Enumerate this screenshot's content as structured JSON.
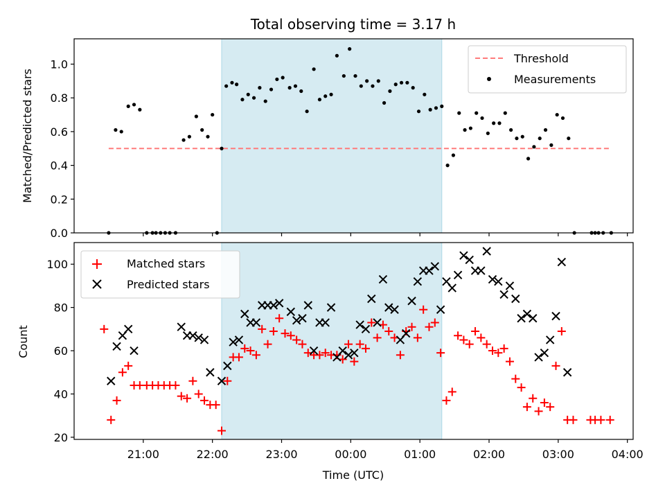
{
  "chart_data": [
    {
      "type": "scatter",
      "title": "Total observing time = 3.17 h",
      "xlabel": "",
      "ylabel": "Matched/Predicted stars",
      "ylim": [
        0,
        1.15
      ],
      "yticks": [
        "0.0",
        "0.2",
        "0.4",
        "0.6",
        "0.8",
        "1.0"
      ],
      "legend_position": "top-right",
      "grid": false,
      "highlight_span": {
        "start": "22:08",
        "end": "01:19",
        "color": "#add8e6"
      },
      "threshold": {
        "name": "Threshold",
        "value": 0.5,
        "x_start": "20:30",
        "x_end": "03:45",
        "color": "#ff7b7b"
      },
      "series": [
        {
          "name": "Measurements",
          "color": "#000000",
          "marker": "dot",
          "points": [
            [
              "20:30",
              0.0
            ],
            [
              "20:36",
              0.61
            ],
            [
              "20:41",
              0.6
            ],
            [
              "20:47",
              0.75
            ],
            [
              "20:52",
              0.76
            ],
            [
              "20:57",
              0.73
            ],
            [
              "21:03",
              0.0
            ],
            [
              "21:08",
              0.0
            ],
            [
              "21:11",
              0.0
            ],
            [
              "21:15",
              0.0
            ],
            [
              "21:19",
              0.0
            ],
            [
              "21:23",
              0.0
            ],
            [
              "21:28",
              0.0
            ],
            [
              "21:35",
              0.55
            ],
            [
              "21:40",
              0.57
            ],
            [
              "21:46",
              0.69
            ],
            [
              "21:51",
              0.61
            ],
            [
              "21:56",
              0.57
            ],
            [
              "22:00",
              0.7
            ],
            [
              "22:04",
              0.0
            ],
            [
              "22:08",
              0.5
            ],
            [
              "22:12",
              0.87
            ],
            [
              "22:17",
              0.89
            ],
            [
              "22:21",
              0.88
            ],
            [
              "22:26",
              0.79
            ],
            [
              "22:31",
              0.82
            ],
            [
              "22:36",
              0.8
            ],
            [
              "22:41",
              0.86
            ],
            [
              "22:46",
              0.78
            ],
            [
              "22:51",
              0.85
            ],
            [
              "22:56",
              0.91
            ],
            [
              "23:01",
              0.92
            ],
            [
              "23:07",
              0.86
            ],
            [
              "23:12",
              0.87
            ],
            [
              "23:17",
              0.84
            ],
            [
              "23:22",
              0.72
            ],
            [
              "23:28",
              0.97
            ],
            [
              "23:33",
              0.79
            ],
            [
              "23:38",
              0.81
            ],
            [
              "23:43",
              0.82
            ],
            [
              "23:48",
              1.05
            ],
            [
              "23:54",
              0.93
            ],
            [
              "23:59",
              1.09
            ],
            [
              "00:04",
              0.93
            ],
            [
              "00:09",
              0.87
            ],
            [
              "00:14",
              0.9
            ],
            [
              "00:19",
              0.87
            ],
            [
              "00:24",
              0.9
            ],
            [
              "00:29",
              0.77
            ],
            [
              "00:34",
              0.84
            ],
            [
              "00:39",
              0.88
            ],
            [
              "00:44",
              0.89
            ],
            [
              "00:49",
              0.89
            ],
            [
              "00:54",
              0.86
            ],
            [
              "00:59",
              0.72
            ],
            [
              "01:04",
              0.82
            ],
            [
              "01:09",
              0.73
            ],
            [
              "01:14",
              0.74
            ],
            [
              "01:19",
              0.75
            ],
            [
              "01:24",
              0.4
            ],
            [
              "01:29",
              0.46
            ],
            [
              "01:34",
              0.71
            ],
            [
              "01:39",
              0.61
            ],
            [
              "01:44",
              0.62
            ],
            [
              "01:49",
              0.71
            ],
            [
              "01:54",
              0.68
            ],
            [
              "01:59",
              0.59
            ],
            [
              "02:04",
              0.65
            ],
            [
              "02:09",
              0.65
            ],
            [
              "02:14",
              0.71
            ],
            [
              "02:19",
              0.61
            ],
            [
              "02:24",
              0.56
            ],
            [
              "02:29",
              0.57
            ],
            [
              "02:34",
              0.44
            ],
            [
              "02:39",
              0.51
            ],
            [
              "02:44",
              0.56
            ],
            [
              "02:49",
              0.61
            ],
            [
              "02:54",
              0.52
            ],
            [
              "02:59",
              0.7
            ],
            [
              "03:04",
              0.68
            ],
            [
              "03:09",
              0.56
            ],
            [
              "03:14",
              0.0
            ],
            [
              "03:29",
              0.0
            ],
            [
              "03:32",
              0.0
            ],
            [
              "03:35",
              0.0
            ],
            [
              "03:39",
              0.0
            ],
            [
              "03:46",
              0.0
            ]
          ]
        }
      ]
    },
    {
      "type": "scatter",
      "title": "",
      "xlabel": "Time (UTC)",
      "ylabel": "Count",
      "ylim": [
        19,
        110
      ],
      "yticks": [
        "20",
        "40",
        "60",
        "80",
        "100"
      ],
      "xlim": [
        "20:00",
        "04:05"
      ],
      "xticks": [
        "21:00",
        "22:00",
        "23:00",
        "00:00",
        "01:00",
        "02:00",
        "03:00",
        "04:00"
      ],
      "legend_position": "top-left",
      "grid": false,
      "highlight_span": {
        "start": "22:08",
        "end": "01:19",
        "color": "#add8e6"
      },
      "series": [
        {
          "name": "Matched stars",
          "color": "#ff0000",
          "marker": "plus",
          "points": [
            [
              "20:26",
              70
            ],
            [
              "20:32",
              28
            ],
            [
              "20:37",
              37
            ],
            [
              "20:42",
              50
            ],
            [
              "20:47",
              53
            ],
            [
              "20:52",
              44
            ],
            [
              "20:57",
              44
            ],
            [
              "21:03",
              44
            ],
            [
              "21:08",
              44
            ],
            [
              "21:13",
              44
            ],
            [
              "21:18",
              44
            ],
            [
              "21:23",
              44
            ],
            [
              "21:28",
              44
            ],
            [
              "21:33",
              39
            ],
            [
              "21:38",
              38
            ],
            [
              "21:43",
              46
            ],
            [
              "21:48",
              40
            ],
            [
              "21:53",
              37
            ],
            [
              "21:58",
              35
            ],
            [
              "22:03",
              35
            ],
            [
              "22:08",
              23
            ],
            [
              "22:13",
              46
            ],
            [
              "22:18",
              57
            ],
            [
              "22:23",
              57
            ],
            [
              "22:28",
              61
            ],
            [
              "22:33",
              60
            ],
            [
              "22:38",
              58
            ],
            [
              "22:43",
              70
            ],
            [
              "22:48",
              63
            ],
            [
              "22:53",
              69
            ],
            [
              "22:58",
              75
            ],
            [
              "23:03",
              68
            ],
            [
              "23:08",
              67
            ],
            [
              "23:13",
              65
            ],
            [
              "23:18",
              63
            ],
            [
              "23:23",
              59
            ],
            [
              "23:28",
              58
            ],
            [
              "23:33",
              58
            ],
            [
              "23:38",
              59
            ],
            [
              "23:43",
              58
            ],
            [
              "23:48",
              58
            ],
            [
              "23:53",
              56
            ],
            [
              "23:58",
              63
            ],
            [
              "00:03",
              55
            ],
            [
              "00:08",
              63
            ],
            [
              "00:13",
              61
            ],
            [
              "00:18",
              73
            ],
            [
              "00:23",
              66
            ],
            [
              "00:28",
              72
            ],
            [
              "00:33",
              69
            ],
            [
              "00:38",
              66
            ],
            [
              "00:43",
              58
            ],
            [
              "00:48",
              69
            ],
            [
              "00:53",
              71
            ],
            [
              "00:58",
              66
            ],
            [
              "01:03",
              79
            ],
            [
              "01:08",
              71
            ],
            [
              "01:13",
              73
            ],
            [
              "01:18",
              59
            ],
            [
              "01:23",
              37
            ],
            [
              "01:28",
              41
            ],
            [
              "01:33",
              67
            ],
            [
              "01:38",
              65
            ],
            [
              "01:43",
              63
            ],
            [
              "01:48",
              69
            ],
            [
              "01:53",
              66
            ],
            [
              "01:58",
              63
            ],
            [
              "02:03",
              60
            ],
            [
              "02:08",
              59
            ],
            [
              "02:13",
              61
            ],
            [
              "02:18",
              55
            ],
            [
              "02:23",
              47
            ],
            [
              "02:28",
              43
            ],
            [
              "02:33",
              34
            ],
            [
              "02:38",
              38
            ],
            [
              "02:43",
              32
            ],
            [
              "02:48",
              36
            ],
            [
              "02:53",
              34
            ],
            [
              "02:58",
              53
            ],
            [
              "03:03",
              69
            ],
            [
              "03:08",
              28
            ],
            [
              "03:13",
              28
            ],
            [
              "03:28",
              28
            ],
            [
              "03:32",
              28
            ],
            [
              "03:37",
              28
            ],
            [
              "03:45",
              28
            ]
          ]
        },
        {
          "name": "Predicted stars",
          "color": "#000000",
          "marker": "x",
          "points": [
            [
              "20:32",
              46
            ],
            [
              "20:37",
              62
            ],
            [
              "20:42",
              67
            ],
            [
              "20:47",
              70
            ],
            [
              "20:52",
              60
            ],
            [
              "21:33",
              71
            ],
            [
              "21:38",
              67
            ],
            [
              "21:43",
              67
            ],
            [
              "21:48",
              66
            ],
            [
              "21:53",
              65
            ],
            [
              "21:58",
              50
            ],
            [
              "22:08",
              46
            ],
            [
              "22:13",
              53
            ],
            [
              "22:18",
              64
            ],
            [
              "22:23",
              65
            ],
            [
              "22:28",
              77
            ],
            [
              "22:33",
              73
            ],
            [
              "22:38",
              73
            ],
            [
              "22:43",
              81
            ],
            [
              "22:48",
              81
            ],
            [
              "22:53",
              81
            ],
            [
              "22:58",
              82
            ],
            [
              "23:08",
              78
            ],
            [
              "23:13",
              74
            ],
            [
              "23:18",
              75
            ],
            [
              "23:23",
              81
            ],
            [
              "23:28",
              60
            ],
            [
              "23:33",
              73
            ],
            [
              "23:38",
              73
            ],
            [
              "23:43",
              80
            ],
            [
              "23:48",
              57
            ],
            [
              "23:53",
              60
            ],
            [
              "23:58",
              58
            ],
            [
              "00:03",
              59
            ],
            [
              "00:08",
              72
            ],
            [
              "00:13",
              70
            ],
            [
              "00:18",
              84
            ],
            [
              "00:23",
              73
            ],
            [
              "00:28",
              93
            ],
            [
              "00:33",
              80
            ],
            [
              "00:38",
              79
            ],
            [
              "00:43",
              65
            ],
            [
              "00:48",
              68
            ],
            [
              "00:53",
              83
            ],
            [
              "00:58",
              92
            ],
            [
              "01:03",
              97
            ],
            [
              "01:08",
              97
            ],
            [
              "01:13",
              99
            ],
            [
              "01:18",
              79
            ],
            [
              "01:23",
              92
            ],
            [
              "01:28",
              89
            ],
            [
              "01:33",
              95
            ],
            [
              "01:38",
              104
            ],
            [
              "01:43",
              102
            ],
            [
              "01:48",
              97
            ],
            [
              "01:53",
              97
            ],
            [
              "01:58",
              106
            ],
            [
              "02:03",
              93
            ],
            [
              "02:08",
              92
            ],
            [
              "02:13",
              86
            ],
            [
              "02:18",
              90
            ],
            [
              "02:23",
              84
            ],
            [
              "02:28",
              75
            ],
            [
              "02:33",
              77
            ],
            [
              "02:38",
              75
            ],
            [
              "02:43",
              57
            ],
            [
              "02:48",
              59
            ],
            [
              "02:53",
              65
            ],
            [
              "02:58",
              76
            ],
            [
              "03:03",
              101
            ],
            [
              "03:08",
              50
            ]
          ]
        }
      ]
    }
  ]
}
